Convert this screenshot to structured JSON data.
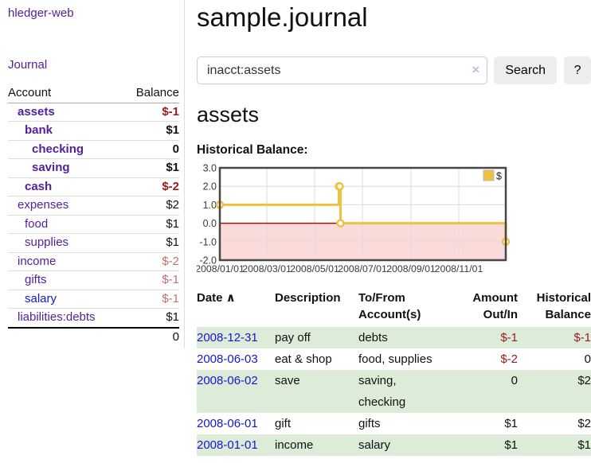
{
  "colors": {
    "link_purple": "#52219c",
    "link_blue": "#1616d1",
    "neg_strong": "#9c1a1a",
    "neg_soft": "#c46f6f",
    "row_stripe_green": "#ddecd8",
    "chart_series_yellow": "#edc240",
    "chart_negative_region": "#fbdada",
    "chart_zero_line": "#9d1212",
    "chart_grid": "#dcdcdc",
    "chart_border": "#474747"
  },
  "sidebar": {
    "app_title": "hledger-web",
    "journal_link": "Journal",
    "accounts": {
      "col_account": "Account",
      "col_balance": "Balance",
      "rows": [
        {
          "label": "assets",
          "indent": 0,
          "bold": true,
          "blue": false,
          "balance": "$-1",
          "balance_class": "neg-strong"
        },
        {
          "label": "bank",
          "indent": 1,
          "bold": true,
          "blue": false,
          "balance": "$1",
          "balance_class": "pos"
        },
        {
          "label": "checking",
          "indent": 2,
          "bold": true,
          "blue": false,
          "balance": "0",
          "balance_class": "pos"
        },
        {
          "label": "saving",
          "indent": 2,
          "bold": true,
          "blue": false,
          "balance": "$1",
          "balance_class": "pos"
        },
        {
          "label": "cash",
          "indent": 1,
          "bold": true,
          "blue": false,
          "balance": "$-2",
          "balance_class": "neg-strong"
        },
        {
          "label": "expenses",
          "indent": 0,
          "bold": false,
          "blue": false,
          "balance": "$2",
          "balance_class": "pos"
        },
        {
          "label": "food",
          "indent": 1,
          "bold": false,
          "blue": false,
          "balance": "$1",
          "balance_class": "pos"
        },
        {
          "label": "supplies",
          "indent": 1,
          "bold": false,
          "blue": false,
          "balance": "$1",
          "balance_class": "pos"
        },
        {
          "label": "income",
          "indent": 0,
          "bold": false,
          "blue": false,
          "balance": "$-2",
          "balance_class": "neg-soft"
        },
        {
          "label": "gifts",
          "indent": 1,
          "bold": false,
          "blue": false,
          "balance": "$-1",
          "balance_class": "neg-soft"
        },
        {
          "label": "salary",
          "indent": 1,
          "bold": false,
          "blue": true,
          "balance": "$-1",
          "balance_class": "neg-soft"
        },
        {
          "label": "liabilities:debts",
          "indent": 0,
          "bold": false,
          "blue": false,
          "balance": "$1",
          "balance_class": "pos"
        }
      ],
      "total": "0"
    }
  },
  "main": {
    "page_title": "sample.journal",
    "search": {
      "value": "inacct:assets",
      "clear_label": "×",
      "search_button": "Search",
      "help_button": "?"
    },
    "account_heading": "assets",
    "chart_heading": "Historical Balance:",
    "register": {
      "columns": [
        {
          "id": "date",
          "lines": [
            "Date ∧"
          ],
          "align": "left"
        },
        {
          "id": "desc",
          "lines": [
            "Description"
          ],
          "align": "left"
        },
        {
          "id": "tofrom",
          "lines": [
            "To/From",
            "Account(s)"
          ],
          "align": "left"
        },
        {
          "id": "amount",
          "lines": [
            "Amount",
            "Out/In"
          ],
          "align": "right"
        },
        {
          "id": "balance",
          "lines": [
            "Historical",
            "Balance"
          ],
          "align": "right"
        }
      ],
      "rows": [
        {
          "date": "2008-12-31",
          "description": "pay off",
          "accounts": "debts",
          "amount": "$-1",
          "amount_neg": true,
          "balance": "$-1",
          "balance_neg": true,
          "stripe": true
        },
        {
          "date": "2008-06-03",
          "description": "eat & shop",
          "accounts": "food, supplies",
          "amount": "$-2",
          "amount_neg": true,
          "balance": "0",
          "balance_neg": false,
          "stripe": false
        },
        {
          "date": "2008-06-02",
          "description": "save",
          "accounts": "saving, checking",
          "amount": "0",
          "amount_neg": false,
          "balance": "$2",
          "balance_neg": false,
          "stripe": true
        },
        {
          "date": "2008-06-01",
          "description": "gift",
          "accounts": "gifts",
          "amount": "$1",
          "amount_neg": false,
          "balance": "$2",
          "balance_neg": false,
          "stripe": false
        },
        {
          "date": "2008-01-01",
          "description": "income",
          "accounts": "salary",
          "amount": "$1",
          "amount_neg": false,
          "balance": "$1",
          "balance_neg": false,
          "stripe": true
        }
      ]
    }
  },
  "chart_data": {
    "type": "line",
    "style": "step",
    "title": "Historical Balance:",
    "series": [
      {
        "name": "$",
        "points": [
          {
            "date": "2008-01-01",
            "value": 1
          },
          {
            "date": "2008-06-01",
            "value": 2
          },
          {
            "date": "2008-06-02",
            "value": 2
          },
          {
            "date": "2008-06-03",
            "value": 0
          },
          {
            "date": "2008-12-31",
            "value": -1
          }
        ]
      }
    ],
    "x_range": [
      "2008-01-01",
      "2008-12-31"
    ],
    "x_ticks": [
      {
        "date": "2008-01-01",
        "label": "2008/01/01"
      },
      {
        "date": "2008-03-01",
        "label": "2008/03/01"
      },
      {
        "date": "2008-05-01",
        "label": "2008/05/01"
      },
      {
        "date": "2008-07-01",
        "label": "2008/07/01"
      },
      {
        "date": "2008-09-01",
        "label": "2008/09/01"
      },
      {
        "date": "2008-11-01",
        "label": "2008/11/01"
      }
    ],
    "y_ticks": [
      3,
      2,
      1,
      0,
      -1,
      -2
    ],
    "y_tick_labels": [
      "3.0",
      "2.0",
      "1.0",
      "0.0",
      "-1.0",
      "-2.0"
    ],
    "ylim": [
      -2,
      3
    ],
    "legend": {
      "label": "$",
      "position": "top-right"
    },
    "grid": true
  }
}
